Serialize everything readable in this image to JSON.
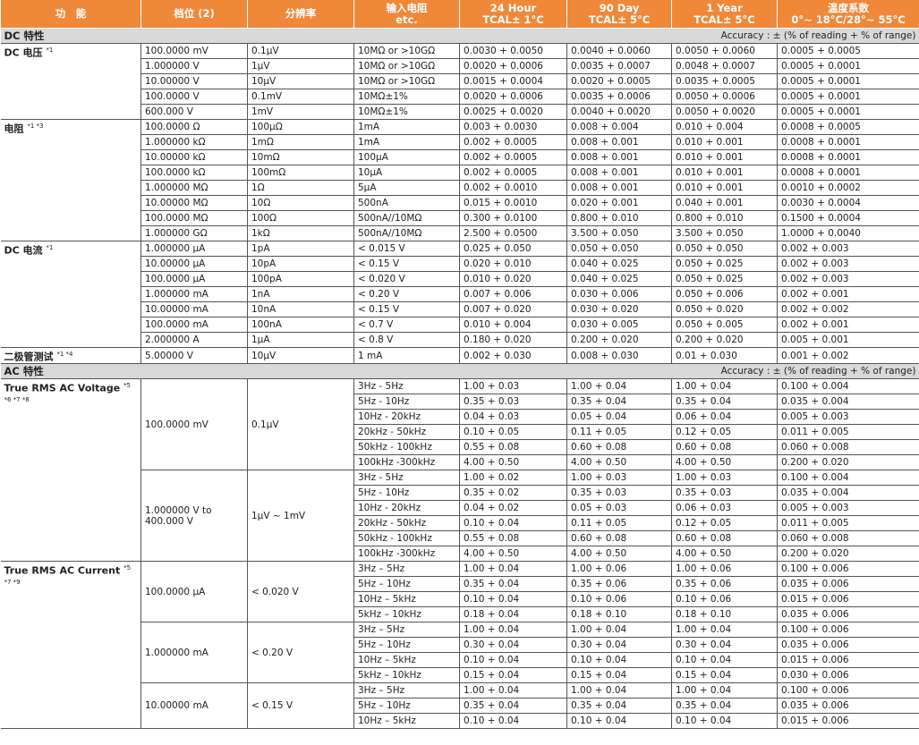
{
  "header": [
    [
      "功　能"
    ],
    [
      "档位 (2)"
    ],
    [
      "分辨率"
    ],
    [
      "输入电阻",
      "etc."
    ],
    [
      "24 Hour",
      "TCAL± 1°C"
    ],
    [
      "90 Day",
      "TCAL± 5°C"
    ],
    [
      "1 Year",
      "TCAL± 5°C"
    ],
    [
      "温度系数",
      "0°~ 18°C/28°~ 55°C"
    ]
  ],
  "sections": [
    {
      "title": "DC 特性",
      "note": "Accuracy : ± (% of reading + % of range)",
      "groups": [
        {
          "name": "DC 电压",
          "note": "*1",
          "rows": [
            [
              "100.0000 mV",
              "0.1μV",
              "10MΩ or >10GΩ",
              "0.0030 + 0.0050",
              "0.0040 + 0.0060",
              "0.0050 + 0.0060",
              "0.0005 + 0.0005"
            ],
            [
              "1.000000 V",
              "1μV",
              "10MΩ or >10GΩ",
              "0.0020 + 0.0006",
              "0.0035 + 0.0007",
              "0.0048 + 0.0007",
              "0.0005 + 0.0001"
            ],
            [
              "10.00000 V",
              "10μV",
              "10MΩ or >10GΩ",
              "0.0015 + 0.0004",
              "0.0020 + 0.0005",
              "0.0035 + 0.0005",
              "0.0005 + 0.0001"
            ],
            [
              "100.0000 V",
              "0.1mV",
              "10MΩ±1%",
              "0.0020 + 0.0006",
              "0.0035 + 0.0006",
              "0.0050 + 0.0006",
              "0.0005 + 0.0001"
            ],
            [
              "600.000 V",
              "1mV",
              "10MΩ±1%",
              "0.0025 + 0.0020",
              "0.0040 + 0.0020",
              "0.0050 + 0.0020",
              "0.0005 + 0.0001"
            ]
          ]
        },
        {
          "name": "电阻",
          "note": "*1 *3",
          "rows": [
            [
              "100.0000 Ω",
              "100μΩ",
              "1mA",
              "0.003 + 0.0030",
              "0.008 + 0.004",
              "0.010 + 0.004",
              "0.0008 + 0.0005"
            ],
            [
              "1.000000 kΩ",
              "1mΩ",
              "1mA",
              "0.002 + 0.0005",
              "0.008 + 0.001",
              "0.010 + 0.001",
              "0.0008 + 0.0001"
            ],
            [
              "10.00000 kΩ",
              "10mΩ",
              "100μA",
              "0.002 + 0.0005",
              "0.008 + 0.001",
              "0.010 + 0.001",
              "0.0008 + 0.0001"
            ],
            [
              "100.0000 kΩ",
              "100mΩ",
              "10μA",
              "0.002 + 0.0005",
              "0.008 + 0.001",
              "0.010 + 0.001",
              "0.0008 + 0.0001"
            ],
            [
              "1.000000 MΩ",
              "1Ω",
              "5μA",
              "0.002 + 0.0010",
              "0.008 + 0.001",
              "0.010 + 0.001",
              "0.0010 + 0.0002"
            ],
            [
              "10.00000 MΩ",
              "10Ω",
              "500nA",
              "0.015 + 0.0010",
              "0.020 + 0.001",
              "0.040 + 0.001",
              "0.0030 + 0.0004"
            ],
            [
              "100.0000 MΩ",
              "100Ω",
              "500nA//10MΩ",
              "0.300 + 0.0100",
              "0.800 + 0.010",
              "0.800 + 0.010",
              "0.1500 + 0.0004"
            ],
            [
              "1.000000 GΩ",
              "1kΩ",
              "500nA//10MΩ",
              "2.500 + 0.0500",
              "3.500 + 0.050",
              "3.500 + 0.050",
              "1.0000 + 0.0040"
            ]
          ]
        },
        {
          "name": "DC 电流",
          "note": "*1",
          "rows": [
            [
              "1.000000 μA",
              "1pA",
              "< 0.015 V",
              "0.025 + 0.050",
              "0.050 + 0.050",
              "0.050 + 0.050",
              "0.002 + 0.003"
            ],
            [
              "10.00000 μA",
              "10pA",
              "< 0.15 V",
              "0.020 + 0.010",
              "0.040 + 0.025",
              "0.050 + 0.025",
              "0.002 + 0.003"
            ],
            [
              "100.0000 μA",
              "100pA",
              "< 0.020 V",
              "0.010 + 0.020",
              "0.040 + 0.025",
              "0.050 + 0.025",
              "0.002 + 0.003"
            ],
            [
              "1.000000 mA",
              "1nA",
              "< 0.20 V",
              "0.007 + 0.006",
              "0.030 + 0.006",
              "0.050 + 0.006",
              "0.002 + 0.001"
            ],
            [
              "10.00000 mA",
              "10nA",
              "< 0.15 V",
              "0.007 + 0.020",
              "0.030 + 0.020",
              "0.050 + 0.020",
              "0.002 + 0.002"
            ],
            [
              "100.0000 mA",
              "100nA",
              "< 0.7 V",
              "0.010 + 0.004",
              "0.030 + 0.005",
              "0.050 + 0.005",
              "0.002 + 0.001"
            ],
            [
              "2.000000 A",
              "1μA",
              "< 0.8 V",
              "0.180 + 0.020",
              "0.200 + 0.020",
              "0.200 + 0.020",
              "0.005 + 0.001"
            ]
          ]
        },
        {
          "name": "二极管测试",
          "note": "*1 *4",
          "rows": [
            [
              "5.00000 V",
              "10μV",
              "1 mA",
              "0.002 + 0.030",
              "0.008 + 0.030",
              "0.01 + 0.030",
              "0.001 + 0.002"
            ]
          ]
        }
      ]
    },
    {
      "title": "AC 特性",
      "note": "Accuracy : ± (% of reading + % of range)",
      "groups": [
        {
          "name": "True RMS AC Voltage",
          "note": "*5 *6 *7 *8",
          "subgroups": [
            {
              "range": "100.0000 mV",
              "resolution": "0.1μV",
              "rows": [
                [
                  "3Hz - 5Hz",
                  "1.00 + 0.03",
                  "1.00 + 0.04",
                  "1.00 + 0.04",
                  "0.100 + 0.004"
                ],
                [
                  "5Hz - 10Hz",
                  "0.35 + 0.03",
                  "0.35 + 0.04",
                  "0.35 + 0.04",
                  "0.035 + 0.004"
                ],
                [
                  "10Hz - 20kHz",
                  "0.04 + 0.03",
                  "0.05 + 0.04",
                  "0.06 + 0.04",
                  "0.005 + 0.003"
                ],
                [
                  "20kHz - 50kHz",
                  "0.10 + 0.05",
                  "0.11 + 0.05",
                  "0.12 + 0.05",
                  "0.011 + 0.005"
                ],
                [
                  "50kHz - 100kHz",
                  "0.55 + 0.08",
                  "0.60 + 0.08",
                  "0.60 + 0.08",
                  "0.060 + 0.008"
                ],
                [
                  "100kHz -300kHz",
                  "4.00 + 0.50",
                  "4.00 + 0.50",
                  "4.00 + 0.50",
                  "0.200 + 0.020"
                ]
              ]
            },
            {
              "range": "1.000000 V to\n400.000 V",
              "resolution": "1μV ~ 1mV",
              "rows": [
                [
                  "3Hz - 5Hz",
                  "1.00 + 0.02",
                  "1.00 + 0.03",
                  "1.00 + 0.03",
                  "0.100 + 0.004"
                ],
                [
                  "5Hz - 10Hz",
                  "0.35 + 0.02",
                  "0.35 + 0.03",
                  "0.35 + 0.03",
                  "0.035 + 0.004"
                ],
                [
                  "10Hz - 20kHz",
                  "0.04 + 0.02",
                  "0.05 + 0.03",
                  "0.06 + 0.03",
                  "0.005 + 0.003"
                ],
                [
                  "20kHz - 50kHz",
                  "0.10 + 0.04",
                  "0.11 + 0.05",
                  "0.12 + 0.05",
                  "0.011 + 0.005"
                ],
                [
                  "50kHz - 100kHz",
                  "0.55 + 0.08",
                  "0.60 + 0.08",
                  "0.60 + 0.08",
                  "0.060 + 0.008"
                ],
                [
                  "100kHz -300kHz",
                  "4.00 + 0.50",
                  "4.00 + 0.50",
                  "4.00 + 0.50",
                  "0.200 + 0.020"
                ]
              ]
            }
          ]
        },
        {
          "name": "True RMS AC Current",
          "note": "*5 *7 *9",
          "subgroups": [
            {
              "range": "100.0000 μA",
              "resolution": "< 0.020 V",
              "rows": [
                [
                  "3Hz – 5Hz",
                  "1.00 + 0.04",
                  "1.00 + 0.06",
                  "1.00 + 0.06",
                  "0.100 + 0.006"
                ],
                [
                  "5Hz – 10Hz",
                  "0.35 + 0.04",
                  "0.35 + 0.06",
                  "0.35 + 0.06",
                  "0.035 + 0.006"
                ],
                [
                  "10Hz – 5kHz",
                  "0.10 + 0.04",
                  "0.10 + 0.06",
                  "0.10 + 0.06",
                  "0.015 + 0.006"
                ],
                [
                  "5kHz – 10kHz",
                  "0.18 + 0.04",
                  "0.18 + 0.10",
                  "0.18 + 0.10",
                  "0.035 + 0.006"
                ]
              ]
            },
            {
              "range": "1.000000 mA",
              "resolution": "< 0.20 V",
              "rows": [
                [
                  "3Hz – 5Hz",
                  "1.00 + 0.04",
                  "1.00 + 0.04",
                  "1.00 + 0.04",
                  "0.100 + 0.006"
                ],
                [
                  "5Hz – 10Hz",
                  "0.30 + 0.04",
                  "0.30 + 0.04",
                  "0.30 + 0.04",
                  "0.035 + 0.006"
                ],
                [
                  "10Hz – 5kHz",
                  "0.10 + 0.04",
                  "0.10 + 0.04",
                  "0.10 + 0.04",
                  "0.015 + 0.006"
                ],
                [
                  "5kHz – 10kHz",
                  "0.15 + 0.04",
                  "0.15 + 0.04",
                  "0.15 + 0.04",
                  "0.030 + 0.006"
                ]
              ]
            },
            {
              "range": "10.00000 mA",
              "resolution": "< 0.15 V",
              "rows": [
                [
                  "3Hz – 5Hz",
                  "1.00 + 0.04",
                  "1.00 + 0.04",
                  "1.00 + 0.04",
                  "0.100 + 0.006"
                ],
                [
                  "5Hz – 10Hz",
                  "0.35 + 0.04",
                  "0.35 + 0.04",
                  "0.35 + 0.04",
                  "0.035 + 0.006"
                ],
                [
                  "10Hz – 5kHz",
                  "0.10 + 0.04",
                  "0.10 + 0.04",
                  "0.10 + 0.04",
                  "0.015 + 0.006"
                ]
              ]
            }
          ]
        }
      ]
    }
  ]
}
